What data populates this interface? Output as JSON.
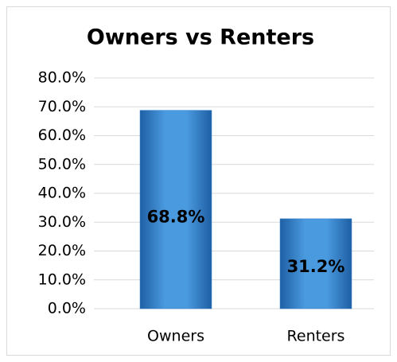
{
  "chart_data": {
    "type": "bar",
    "title": "Owners vs Renters",
    "categories": [
      "Owners",
      "Renters"
    ],
    "values": [
      68.8,
      31.2
    ],
    "value_labels": [
      "68.8%",
      "31.2%"
    ],
    "color": "#3a86cf",
    "ylim": [
      0,
      80
    ],
    "yticks": [
      {
        "value": 0,
        "label": "0.0%"
      },
      {
        "value": 10,
        "label": "10.0%"
      },
      {
        "value": 20,
        "label": "20.0%"
      },
      {
        "value": 30,
        "label": "30.0%"
      },
      {
        "value": 40,
        "label": "40.0%"
      },
      {
        "value": 50,
        "label": "50.0%"
      },
      {
        "value": 60,
        "label": "60.0%"
      },
      {
        "value": 70,
        "label": "70.0%"
      },
      {
        "value": 80,
        "label": "80.0%"
      }
    ],
    "grid": true
  }
}
